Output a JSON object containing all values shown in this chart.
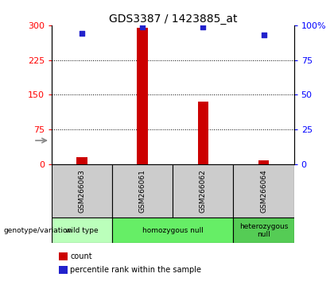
{
  "title": "GDS3387 / 1423885_at",
  "samples": [
    "GSM266063",
    "GSM266061",
    "GSM266062",
    "GSM266064"
  ],
  "counts": [
    15,
    295,
    135,
    8
  ],
  "percentiles": [
    94,
    99,
    99,
    93
  ],
  "ylim_left": [
    0,
    300
  ],
  "ylim_right": [
    0,
    100
  ],
  "yticks_left": [
    0,
    75,
    150,
    225,
    300
  ],
  "yticks_right": [
    0,
    25,
    50,
    75,
    100
  ],
  "ytick_labels_right": [
    "0",
    "25",
    "50",
    "75",
    "100%"
  ],
  "bar_color": "#cc0000",
  "dot_color": "#2222cc",
  "bg_color": "#ffffff",
  "genotype_groups": [
    {
      "label": "wild type",
      "start": 0,
      "end": 1,
      "color": "#bbffbb"
    },
    {
      "label": "homozygous null",
      "start": 1,
      "end": 3,
      "color": "#66ee66"
    },
    {
      "label": "heterozygous\nnull",
      "start": 3,
      "end": 4,
      "color": "#55cc55"
    }
  ],
  "genotype_label": "genotype/variation",
  "legend_items": [
    {
      "color": "#cc0000",
      "label": "count"
    },
    {
      "color": "#2222cc",
      "label": "percentile rank within the sample"
    }
  ],
  "sample_box_color": "#cccccc",
  "title_fontsize": 10,
  "tick_fontsize": 8,
  "bar_width": 0.18
}
